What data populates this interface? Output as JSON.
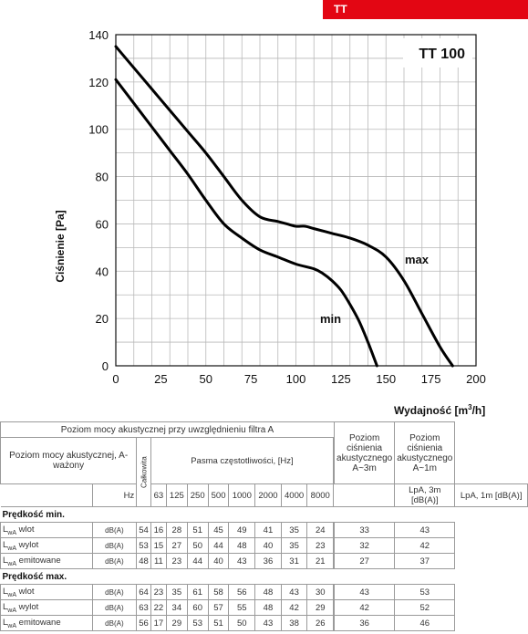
{
  "header_tag": "TT",
  "chart_data": {
    "type": "line",
    "title": "TT 100",
    "xlabel": "Wydajność [m³/h]",
    "ylabel": "Ciśnienie [Pa]",
    "xlim": [
      0,
      200
    ],
    "ylim": [
      0,
      140
    ],
    "xticks": [
      0,
      25,
      50,
      75,
      100,
      125,
      150,
      175,
      200
    ],
    "yticks": [
      0,
      20,
      40,
      60,
      80,
      100,
      120,
      140
    ],
    "grid": true,
    "series": [
      {
        "name": "max",
        "x": [
          0,
          10,
          20,
          30,
          40,
          50,
          60,
          70,
          80,
          90,
          95,
          100,
          105,
          110,
          120,
          130,
          140,
          150,
          160,
          170,
          180,
          187
        ],
        "y": [
          135,
          126,
          117,
          108,
          99,
          90,
          80,
          70,
          63,
          61,
          60,
          59,
          59,
          58,
          56,
          54,
          51,
          46,
          36,
          22,
          8,
          0
        ]
      },
      {
        "name": "min",
        "x": [
          0,
          10,
          20,
          30,
          40,
          50,
          60,
          70,
          80,
          90,
          100,
          110,
          115,
          120,
          125,
          130,
          135,
          140,
          145
        ],
        "y": [
          121,
          111,
          101,
          91,
          81,
          70,
          60,
          54,
          49,
          46,
          43,
          41,
          39,
          36,
          32,
          26,
          19,
          10,
          0
        ]
      }
    ]
  },
  "table": {
    "top_header": "Poziom mocy akustycznej przy uwzględnieniu filtra A",
    "left_header": "Poziom mocy akustycznej, A-ważony",
    "total_header": "Całkowita",
    "band_header": "Pasma częstotliwości, [Hz]",
    "hz_label": "Hz",
    "frequencies": [
      "63",
      "125",
      "250",
      "500",
      "1000",
      "2000",
      "4000",
      "8000"
    ],
    "pressure_header_1": "Poziom ciśnienia akustycznego A~3m",
    "pressure_header_2": "Poziom ciśnienia akustycznego A~1m",
    "pressure_unit_1": "LpA, 3m [dB(A)]",
    "pressure_unit_2": "LpA, 1m [dB(A)]",
    "sections": [
      {
        "title": "Prędkość min.",
        "rows": [
          {
            "label": "wlot",
            "unit": "dB(A)",
            "total": "54",
            "bands": [
              "16",
              "28",
              "51",
              "45",
              "49",
              "41",
              "35",
              "24"
            ],
            "p3": "33",
            "p1": "43"
          },
          {
            "label": "wylot",
            "unit": "dB(A)",
            "total": "53",
            "bands": [
              "15",
              "27",
              "50",
              "44",
              "48",
              "40",
              "35",
              "23"
            ],
            "p3": "32",
            "p1": "42"
          },
          {
            "label": "emitowane",
            "unit": "dB(A)",
            "total": "48",
            "bands": [
              "11",
              "23",
              "44",
              "40",
              "43",
              "36",
              "31",
              "21"
            ],
            "p3": "27",
            "p1": "37"
          }
        ]
      },
      {
        "title": "Prędkość max.",
        "rows": [
          {
            "label": "wlot",
            "unit": "dB(A)",
            "total": "64",
            "bands": [
              "23",
              "35",
              "61",
              "58",
              "56",
              "48",
              "43",
              "30"
            ],
            "p3": "43",
            "p1": "53"
          },
          {
            "label": "wylot",
            "unit": "dB(A)",
            "total": "63",
            "bands": [
              "22",
              "34",
              "60",
              "57",
              "55",
              "48",
              "42",
              "29"
            ],
            "p3": "42",
            "p1": "52"
          },
          {
            "label": "emitowane",
            "unit": "dB(A)",
            "total": "56",
            "bands": [
              "17",
              "29",
              "53",
              "51",
              "50",
              "43",
              "38",
              "26"
            ],
            "p3": "36",
            "p1": "46"
          }
        ]
      }
    ]
  }
}
